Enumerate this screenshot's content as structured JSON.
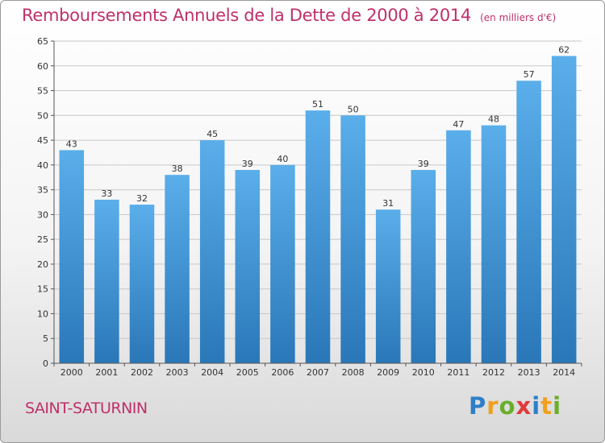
{
  "header": {
    "title": "Remboursements Annuels de la Dette de 2000 à 2014",
    "subtitle": "(en milliers d'€)"
  },
  "footer": {
    "commune": "SAINT-SATURNIN",
    "logo_letters": [
      "P",
      "r",
      "o",
      "x",
      "i",
      "t",
      "i"
    ],
    "logo_colors": [
      "#2e7fc8",
      "#f0a020",
      "#6aae2a",
      "#e23a3a",
      "#2e7fc8",
      "#f0a020",
      "#6aae2a"
    ]
  },
  "colors": {
    "bar_light": "#5aaeea",
    "bar_dark": "#2a77b8",
    "grid": "#c8c8c8",
    "title": "#c0306a"
  },
  "chart_data": {
    "type": "bar",
    "categories": [
      "2000",
      "2001",
      "2002",
      "2003",
      "2004",
      "2005",
      "2006",
      "2007",
      "2008",
      "2009",
      "2010",
      "2011",
      "2012",
      "2013",
      "2014"
    ],
    "values": [
      43,
      33,
      32,
      38,
      45,
      39,
      40,
      51,
      50,
      31,
      39,
      47,
      48,
      57,
      62
    ],
    "ylim": [
      0,
      65
    ],
    "yticks": [
      0,
      5,
      10,
      15,
      20,
      25,
      30,
      35,
      40,
      45,
      50,
      55,
      60,
      65
    ],
    "grid": true
  }
}
